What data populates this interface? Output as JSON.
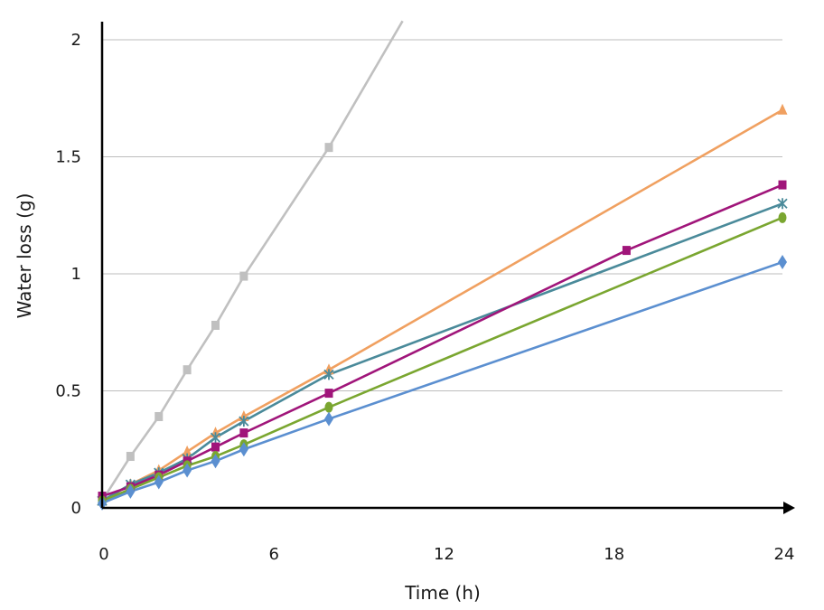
{
  "chart_data": {
    "type": "line",
    "xlabel": "Time (h)",
    "ylabel": "Water loss (g)",
    "xlim": [
      0,
      24
    ],
    "ylim": [
      0,
      2
    ],
    "x_ticks": [
      0,
      6,
      12,
      18,
      24
    ],
    "x_tick_labels": [
      "0",
      "6",
      "12",
      "18",
      "24"
    ],
    "y_ticks": [
      0,
      0.5,
      1,
      1.5,
      2
    ],
    "y_tick_labels": [
      "0",
      "0.5",
      "1",
      "1.5",
      "2"
    ],
    "grid": "horizontal",
    "legend": "none",
    "series": [
      {
        "color": "#c0c0c0",
        "marker": "square",
        "x": [
          0,
          1,
          2,
          3,
          4,
          5,
          8
        ],
        "y": [
          0.03,
          0.22,
          0.39,
          0.59,
          0.78,
          0.99,
          1.54
        ],
        "line_extends_to": [
          10.6,
          2.08
        ]
      },
      {
        "color": "#f0a060",
        "marker": "triangle",
        "x": [
          0,
          1,
          2,
          3,
          4,
          5,
          8,
          24
        ],
        "y": [
          0.03,
          0.1,
          0.16,
          0.24,
          0.32,
          0.39,
          0.59,
          1.7
        ]
      },
      {
        "color": "#4a8a9a",
        "marker": "star",
        "x": [
          0,
          1,
          2,
          3,
          4,
          5,
          8,
          24
        ],
        "y": [
          0.03,
          0.1,
          0.15,
          0.21,
          0.3,
          0.37,
          0.57,
          1.3
        ]
      },
      {
        "color": "#a0157a",
        "marker": "square",
        "x": [
          0,
          1,
          2,
          3,
          4,
          5,
          8,
          18.5,
          24
        ],
        "y": [
          0.05,
          0.09,
          0.14,
          0.2,
          0.26,
          0.32,
          0.49,
          1.1,
          1.38
        ]
      },
      {
        "color": "#7aa630",
        "marker": "circle",
        "x": [
          0,
          1,
          2,
          3,
          4,
          5,
          8,
          24
        ],
        "y": [
          0.03,
          0.08,
          0.13,
          0.18,
          0.22,
          0.27,
          0.43,
          1.24
        ]
      },
      {
        "color": "#5b8fd0",
        "marker": "diamond",
        "x": [
          0,
          1,
          2,
          3,
          4,
          5,
          8,
          24
        ],
        "y": [
          0.02,
          0.07,
          0.11,
          0.16,
          0.2,
          0.25,
          0.38,
          1.05
        ]
      }
    ]
  }
}
